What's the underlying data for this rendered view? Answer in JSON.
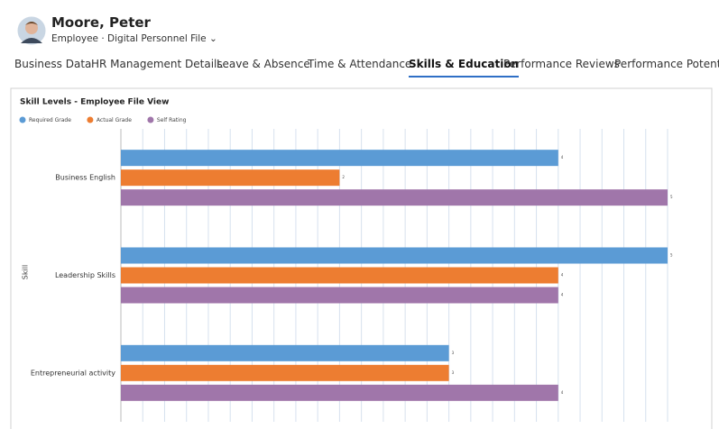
{
  "header": {
    "name": "Moore, Peter",
    "role": "Employee",
    "file": "Digital Personnel File"
  },
  "tabs": [
    "Business Data",
    "HR Management Details",
    "Leave & Absence",
    "Time & Attendance",
    "Skills & Education",
    "Performance Reviews",
    "Performance Potential"
  ],
  "active_tab": 4,
  "chart_data": {
    "type": "hbar",
    "title": "Skill Levels - Employee File View",
    "y_label": "Skill",
    "categories": [
      "Business English",
      "Leadership Skills",
      "Entrepreneurial activity"
    ],
    "series": [
      {
        "name": "Required Grade",
        "color": "#5b9bd5",
        "values": [
          4,
          5,
          3
        ]
      },
      {
        "name": "Actual Grade",
        "color": "#ed7d31",
        "values": [
          2,
          4,
          3
        ]
      },
      {
        "name": "Self Rating",
        "color": "#a076aa",
        "values": [
          5,
          4,
          4
        ]
      }
    ],
    "xlim": [
      0,
      5
    ],
    "xticks": [
      0,
      0.2,
      0.4,
      0.6,
      0.8,
      1,
      1.2,
      1.4,
      1.6,
      1.8,
      2,
      2.2,
      2.4,
      2.6,
      2.8,
      3,
      3.2,
      3.4,
      3.6,
      3.8,
      4,
      4.2,
      4.4,
      4.6,
      4.8,
      5
    ],
    "show_tick_labels": false,
    "grid": true,
    "legend": "top-left"
  }
}
